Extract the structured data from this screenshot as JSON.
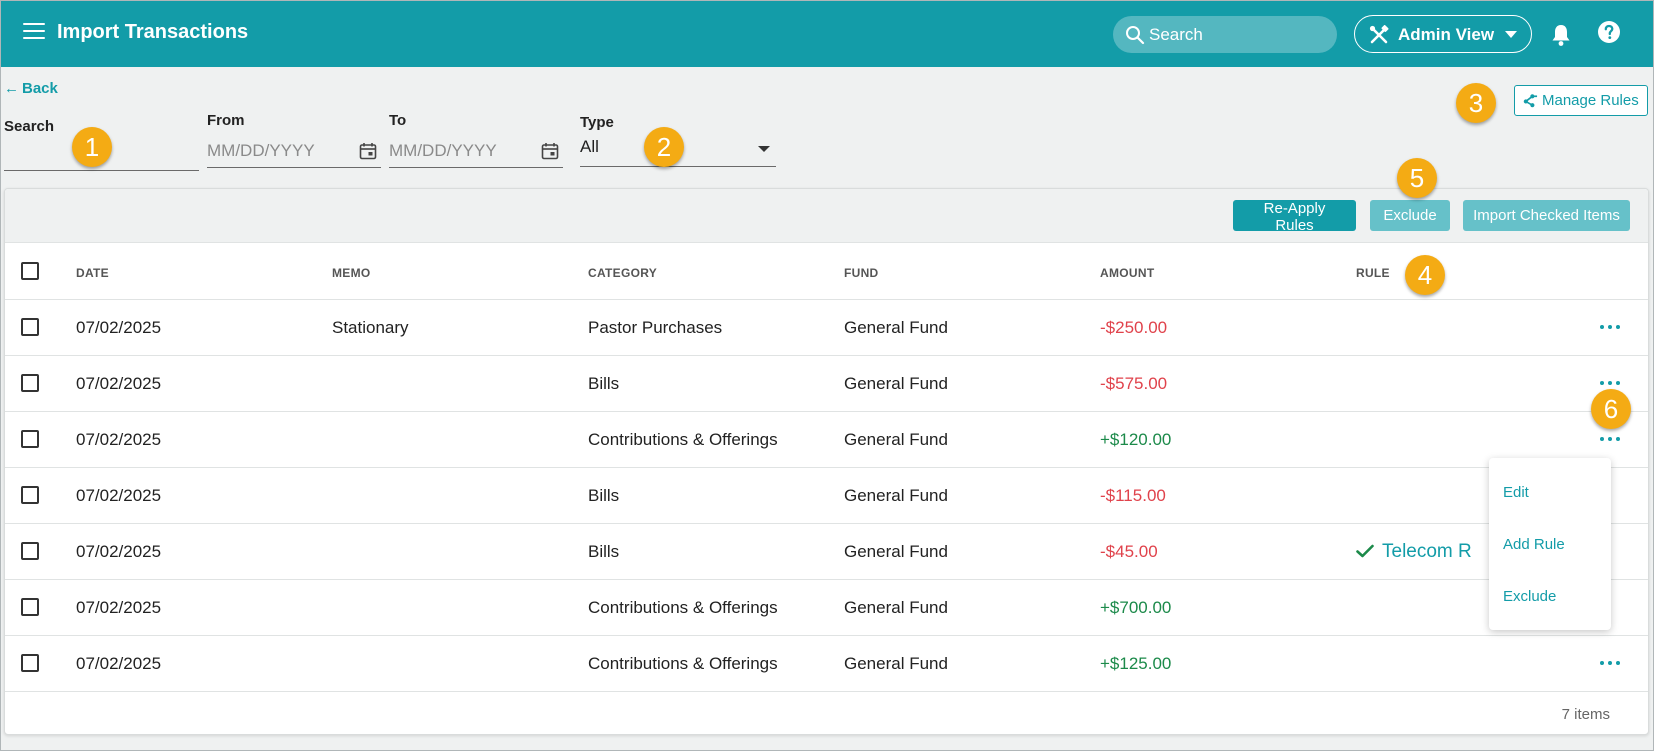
{
  "header": {
    "title": "Import Transactions",
    "search_placeholder": "Search",
    "admin_view_label": "Admin View"
  },
  "toolbar": {
    "back_label": "Back",
    "manage_rules_label": "Manage Rules"
  },
  "filters": {
    "search_label": "Search",
    "search_value": "",
    "from_label": "From",
    "from_placeholder": "MM/DD/YYYY",
    "to_label": "To",
    "to_placeholder": "MM/DD/YYYY",
    "type_label": "Type",
    "type_value": "All"
  },
  "actions": {
    "reapply_label": "Re-Apply Rules",
    "exclude_label": "Exclude",
    "import_label": "Import Checked Items"
  },
  "table": {
    "columns": [
      "DATE",
      "MEMO",
      "CATEGORY",
      "FUND",
      "AMOUNT",
      "RULE"
    ],
    "rows": [
      {
        "date": "07/02/2025",
        "memo": "Stationary",
        "category": "Pastor Purchases",
        "fund": "General Fund",
        "amount": "-$250.00",
        "rule": ""
      },
      {
        "date": "07/02/2025",
        "memo": "",
        "category": "Bills",
        "fund": "General Fund",
        "amount": "-$575.00",
        "rule": ""
      },
      {
        "date": "07/02/2025",
        "memo": "",
        "category": "Contributions & Offerings",
        "fund": "General Fund",
        "amount": "+$120.00",
        "rule": ""
      },
      {
        "date": "07/02/2025",
        "memo": "",
        "category": "Bills",
        "fund": "General Fund",
        "amount": "-$115.00",
        "rule": ""
      },
      {
        "date": "07/02/2025",
        "memo": "",
        "category": "Bills",
        "fund": "General Fund",
        "amount": "-$45.00",
        "rule": "Telecom R"
      },
      {
        "date": "07/02/2025",
        "memo": "",
        "category": "Contributions & Offerings",
        "fund": "General Fund",
        "amount": "+$700.00",
        "rule": ""
      },
      {
        "date": "07/02/2025",
        "memo": "",
        "category": "Contributions & Offerings",
        "fund": "General Fund",
        "amount": "+$125.00",
        "rule": ""
      }
    ],
    "items_count": "7 items"
  },
  "context_menu": {
    "items": [
      "Edit",
      "Add Rule",
      "Exclude"
    ]
  },
  "callouts": [
    "1",
    "2",
    "3",
    "4",
    "5",
    "6"
  ],
  "colors": {
    "brand": "#139ca8",
    "negative": "#e0424b",
    "positive": "#1c8a4a",
    "callout": "#f4ab14"
  }
}
